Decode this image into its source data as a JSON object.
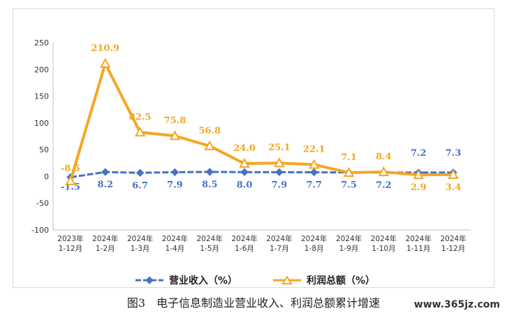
{
  "caption": "图3　电子信息制造业营业收入、利润总额累计增速",
  "watermark": "www.365jz.com",
  "legend": [
    {
      "label": "营业收入（%）",
      "color": "#4472c4"
    },
    {
      "label": "利润总额（%）",
      "color": "#f5a623"
    }
  ],
  "chart_data": {
    "type": "line",
    "categories": [
      "2023年\n1-12月",
      "2024年\n1-2月",
      "2024年\n1-3月",
      "2024年\n1-4月",
      "2024年\n1-5月",
      "2024年\n1-6月",
      "2024年\n1-7月",
      "2024年\n1-8月",
      "2024年\n1-9月",
      "2024年\n1-10月",
      "2024年\n1-11月",
      "2024年\n1-12月"
    ],
    "ylim": [
      -100,
      250
    ],
    "yticks": [
      -100,
      -50,
      0,
      50,
      100,
      150,
      200,
      250
    ],
    "series": [
      {
        "name": "营业收入（%）",
        "color": "#4472c4",
        "values": [
          -1.5,
          8.2,
          6.7,
          7.9,
          8.5,
          8.0,
          7.9,
          7.7,
          7.5,
          7.2,
          7.2,
          7.3
        ],
        "labels": [
          "-1.5",
          "8.2",
          "6.7",
          "7.9",
          "8.5",
          "8.0",
          "7.9",
          "7.7",
          "7.5",
          "7.2",
          "7.2",
          "7.3"
        ]
      },
      {
        "name": "利润总额（%）",
        "color": "#f5a623",
        "values": [
          -8.5,
          210.9,
          82.5,
          75.8,
          56.8,
          24.0,
          25.1,
          22.1,
          7.1,
          8.4,
          2.9,
          3.4
        ],
        "labels": [
          "-8.5",
          "210.9",
          "82.5",
          "75.8",
          "56.8",
          "24.0",
          "25.1",
          "22.1",
          "7.1",
          "8.4",
          "2.9",
          "3.4"
        ]
      }
    ]
  }
}
